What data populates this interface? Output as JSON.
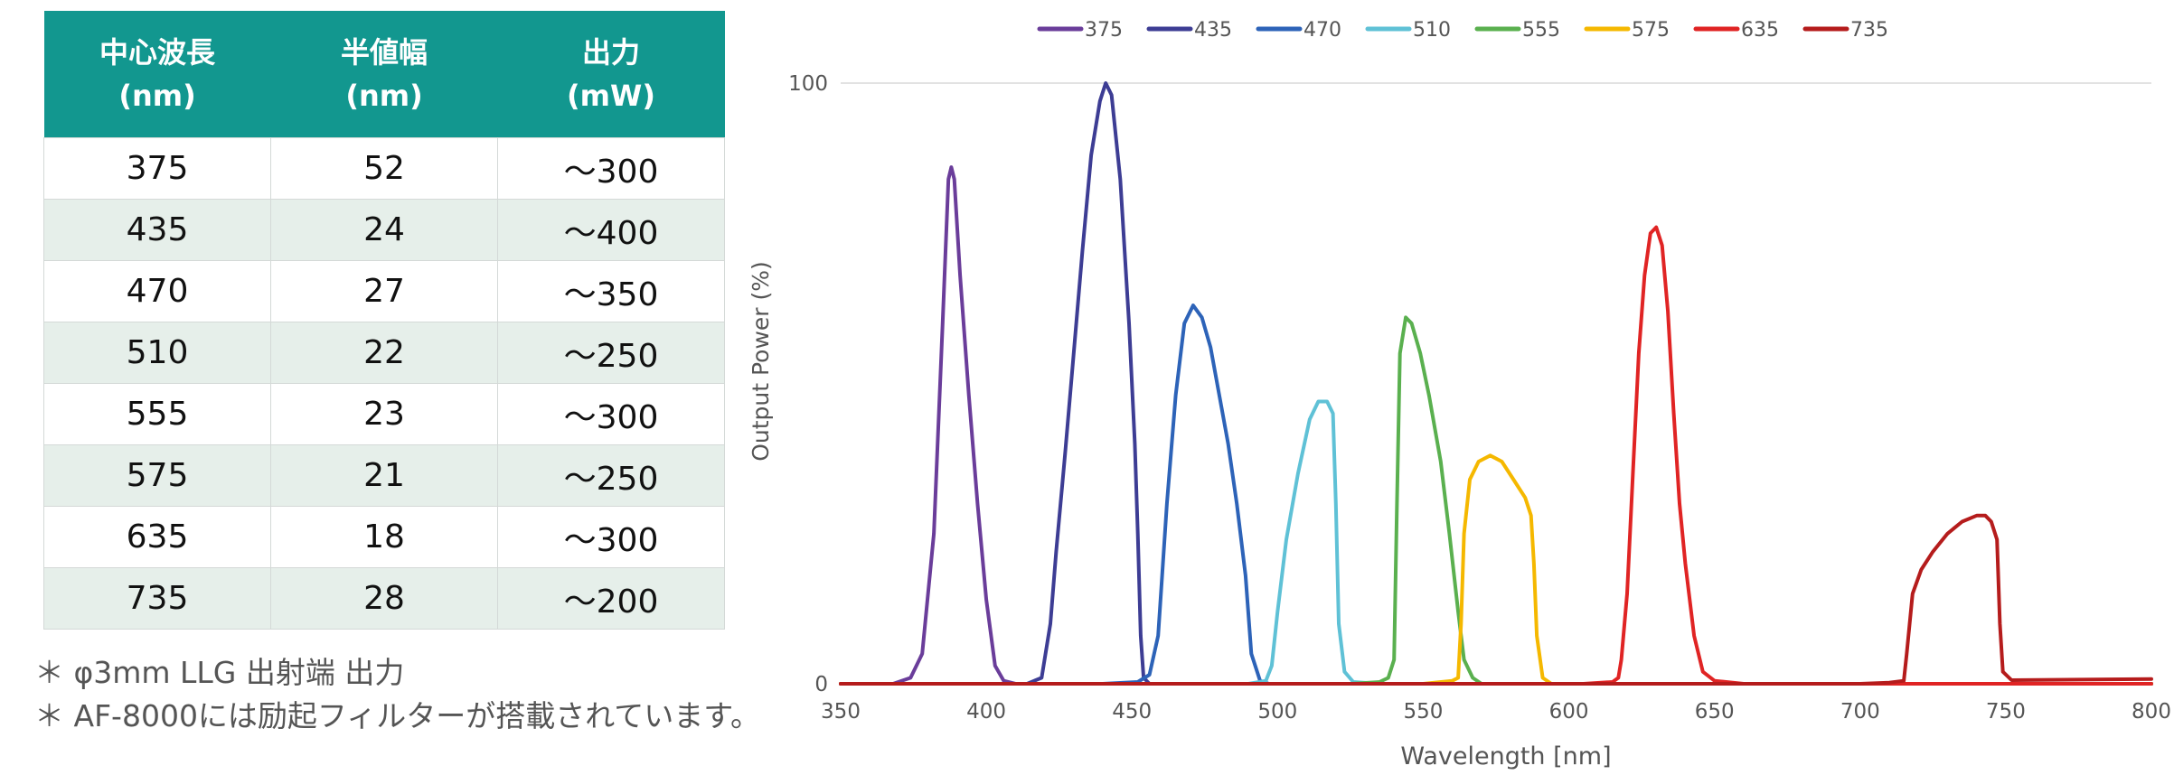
{
  "table": {
    "headers": [
      "中心波長\n(nm)",
      "半値幅\n(nm)",
      "出力\n(mW)"
    ],
    "rows": [
      [
        "375",
        "52",
        "～300"
      ],
      [
        "435",
        "24",
        "～400"
      ],
      [
        "470",
        "27",
        "～350"
      ],
      [
        "510",
        "22",
        "～250"
      ],
      [
        "555",
        "23",
        "～300"
      ],
      [
        "575",
        "21",
        "～250"
      ],
      [
        "635",
        "18",
        "～300"
      ],
      [
        "735",
        "28",
        "～200"
      ]
    ]
  },
  "notes": {
    "note1": "＊ φ3mm LLG 出射端 出力",
    "note2": "＊ AF-8000には励起フィルターが搭載されています。"
  },
  "chart_data": {
    "type": "line",
    "xlabel": "Wavelength [nm]",
    "ylabel": "Output Power (%)",
    "xlim": [
      350,
      800
    ],
    "ylim": [
      0,
      100
    ],
    "x_ticks": [
      350,
      400,
      450,
      500,
      550,
      600,
      650,
      700,
      750,
      800
    ],
    "y_ticks": [
      0,
      100
    ],
    "grid": "horizontal",
    "legend_position": "top",
    "series": [
      {
        "name": "375",
        "color": "#6a3d9a",
        "points": [
          [
            350,
            0
          ],
          [
            368,
            0
          ],
          [
            374,
            1
          ],
          [
            378,
            5
          ],
          [
            382,
            25
          ],
          [
            385,
            60
          ],
          [
            387,
            84
          ],
          [
            388,
            86
          ],
          [
            389,
            84
          ],
          [
            391,
            68
          ],
          [
            394,
            48
          ],
          [
            397,
            30
          ],
          [
            400,
            14
          ],
          [
            403,
            3
          ],
          [
            406,
            0.5
          ],
          [
            410,
            0
          ],
          [
            430,
            0
          ],
          [
            800,
            0
          ]
        ]
      },
      {
        "name": "435",
        "color": "#3d3d94",
        "points": [
          [
            350,
            0
          ],
          [
            414,
            0
          ],
          [
            419,
            1
          ],
          [
            422,
            10
          ],
          [
            424,
            22
          ],
          [
            427,
            38
          ],
          [
            430,
            55
          ],
          [
            433,
            72
          ],
          [
            436,
            88
          ],
          [
            439,
            97
          ],
          [
            441,
            100
          ],
          [
            443,
            98
          ],
          [
            446,
            84
          ],
          [
            449,
            60
          ],
          [
            451,
            40
          ],
          [
            452,
            25
          ],
          [
            453,
            8
          ],
          [
            454,
            1
          ],
          [
            456,
            0
          ],
          [
            800,
            0
          ]
        ]
      },
      {
        "name": "470",
        "color": "#2d63b8",
        "points": [
          [
            350,
            0
          ],
          [
            440,
            0
          ],
          [
            452,
            0.3
          ],
          [
            456,
            1.5
          ],
          [
            459,
            8
          ],
          [
            462,
            30
          ],
          [
            465,
            48
          ],
          [
            468,
            60
          ],
          [
            471,
            63
          ],
          [
            474,
            61
          ],
          [
            477,
            56
          ],
          [
            480,
            48
          ],
          [
            483,
            40
          ],
          [
            486,
            30
          ],
          [
            489,
            18
          ],
          [
            491,
            5
          ],
          [
            494,
            0.5
          ],
          [
            497,
            0
          ],
          [
            800,
            0
          ]
        ]
      },
      {
        "name": "510",
        "color": "#5fc1d6",
        "points": [
          [
            350,
            0
          ],
          [
            490,
            0
          ],
          [
            496,
            0.5
          ],
          [
            498,
            3
          ],
          [
            500,
            12
          ],
          [
            503,
            24
          ],
          [
            507,
            35
          ],
          [
            511,
            44
          ],
          [
            514,
            47
          ],
          [
            517,
            47
          ],
          [
            519,
            45
          ],
          [
            520,
            30
          ],
          [
            521,
            10
          ],
          [
            523,
            2
          ],
          [
            526,
            0.3
          ],
          [
            535,
            0
          ],
          [
            800,
            0
          ]
        ]
      },
      {
        "name": "555",
        "color": "#5ab04f",
        "points": [
          [
            350,
            0
          ],
          [
            525,
            0
          ],
          [
            535,
            0.3
          ],
          [
            538,
            1
          ],
          [
            540,
            4
          ],
          [
            541,
            30
          ],
          [
            542,
            55
          ],
          [
            544,
            61
          ],
          [
            546,
            60
          ],
          [
            549,
            55
          ],
          [
            552,
            48
          ],
          [
            556,
            37
          ],
          [
            559,
            25
          ],
          [
            562,
            12
          ],
          [
            564,
            4
          ],
          [
            567,
            1
          ],
          [
            570,
            0
          ],
          [
            800,
            0
          ]
        ]
      },
      {
        "name": "575",
        "color": "#f5b800",
        "points": [
          [
            350,
            0
          ],
          [
            550,
            0
          ],
          [
            560,
            0.5
          ],
          [
            562,
            1
          ],
          [
            563,
            10
          ],
          [
            564,
            25
          ],
          [
            566,
            34
          ],
          [
            569,
            37
          ],
          [
            573,
            38
          ],
          [
            577,
            37
          ],
          [
            581,
            34
          ],
          [
            585,
            31
          ],
          [
            587,
            28
          ],
          [
            588,
            20
          ],
          [
            589,
            8
          ],
          [
            591,
            1
          ],
          [
            594,
            0
          ],
          [
            800,
            0
          ]
        ]
      },
      {
        "name": "635",
        "color": "#e02424",
        "points": [
          [
            350,
            0
          ],
          [
            605,
            0
          ],
          [
            615,
            0.3
          ],
          [
            617,
            1
          ],
          [
            618,
            4
          ],
          [
            620,
            15
          ],
          [
            622,
            35
          ],
          [
            624,
            55
          ],
          [
            626,
            68
          ],
          [
            628,
            75
          ],
          [
            630,
            76
          ],
          [
            632,
            73
          ],
          [
            634,
            62
          ],
          [
            636,
            45
          ],
          [
            638,
            30
          ],
          [
            640,
            20
          ],
          [
            643,
            8
          ],
          [
            646,
            2
          ],
          [
            650,
            0.5
          ],
          [
            660,
            0
          ],
          [
            800,
            0
          ]
        ]
      },
      {
        "name": "735",
        "color": "#b51c1c",
        "points": [
          [
            350,
            0
          ],
          [
            700,
            0
          ],
          [
            710,
            0.2
          ],
          [
            715,
            0.5
          ],
          [
            716,
            5
          ],
          [
            718,
            15
          ],
          [
            721,
            19
          ],
          [
            725,
            22
          ],
          [
            730,
            25
          ],
          [
            735,
            27
          ],
          [
            740,
            28
          ],
          [
            743,
            28
          ],
          [
            745,
            27
          ],
          [
            747,
            24
          ],
          [
            748,
            10
          ],
          [
            749,
            2
          ],
          [
            752,
            0.6
          ],
          [
            800,
            0.8
          ]
        ]
      }
    ]
  }
}
